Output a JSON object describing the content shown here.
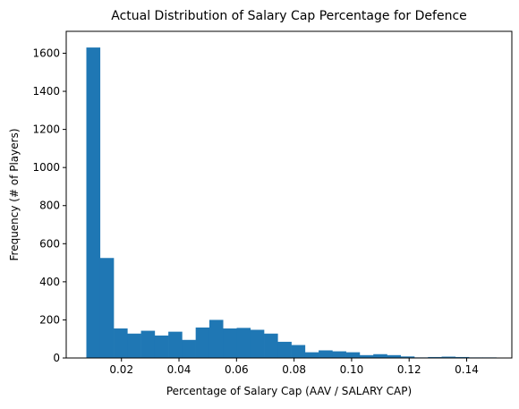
{
  "chart_data": {
    "type": "bar",
    "title": "Actual Distribution of Salary Cap Percentage for Defence",
    "xlabel": "Percentage of Salary Cap (AAV / SALARY CAP)",
    "ylabel": "Frequency (# of Players)",
    "xlim": [
      0.0008,
      0.1557
    ],
    "ylim": [
      0,
      1715
    ],
    "grid": false,
    "color": "#1f77b4",
    "bin_start": 0.0078,
    "bin_width": 0.00475,
    "values": [
      1630,
      525,
      155,
      128,
      143,
      118,
      138,
      95,
      160,
      200,
      155,
      158,
      148,
      128,
      85,
      68,
      30,
      40,
      35,
      30,
      15,
      20,
      15,
      8,
      3,
      5,
      7,
      5,
      3,
      3
    ],
    "xticks": [
      0.02,
      0.04,
      0.06,
      0.08,
      0.1,
      0.12,
      0.14
    ],
    "xtick_labels": [
      "0.02",
      "0.04",
      "0.06",
      "0.08",
      "0.10",
      "0.12",
      "0.14"
    ],
    "yticks": [
      0,
      200,
      400,
      600,
      800,
      1000,
      1200,
      1400,
      1600
    ],
    "ytick_labels": [
      "0",
      "200",
      "400",
      "600",
      "800",
      "1000",
      "1200",
      "1400",
      "1600"
    ]
  }
}
